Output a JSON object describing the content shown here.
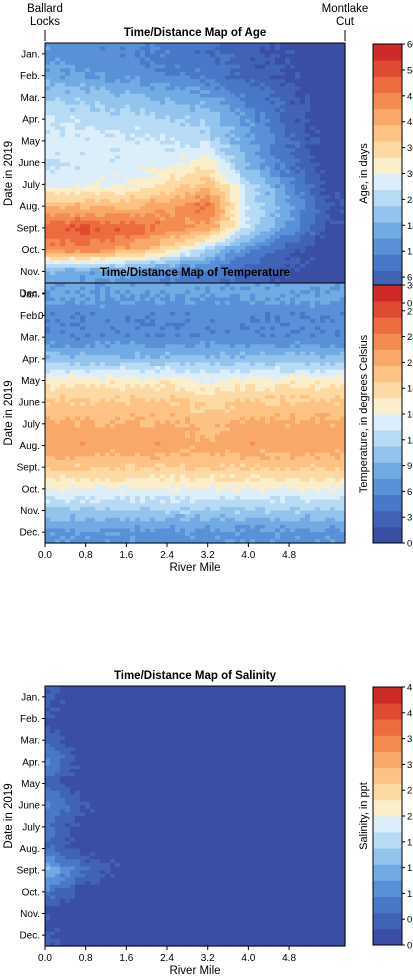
{
  "top_labels": {
    "left": [
      "Ballard",
      "Locks"
    ],
    "right": [
      "Montlake",
      "Cut"
    ]
  },
  "scale": {
    "colors": [
      "#3a4fa3",
      "#4063b6",
      "#4a78c8",
      "#5a90d8",
      "#72aae4",
      "#92c4ee",
      "#b7dbf5",
      "#dbeefa",
      "#fbeecb",
      "#fdd9a4",
      "#fcc384",
      "#f8a96a",
      "#f48c52",
      "#ec6c3f",
      "#df4b31",
      "#cf2a27"
    ]
  },
  "chart_data": [
    {
      "type": "heatmap",
      "title": "Time/Distance Map of Age",
      "xlabel": "River Mile",
      "ylabel": "Date in 2019",
      "colorbar_label": "Age, in days",
      "xlim": [
        0,
        5.9
      ],
      "xticks": [
        "0.0",
        "0.8",
        "1.6",
        "2.4",
        "3.2",
        "4.0",
        "4.8"
      ],
      "yticks": [
        "Jan.",
        "Feb.",
        "Mar.",
        "Apr.",
        "May",
        "June",
        "July",
        "Aug.",
        "Sept.",
        "Oct.",
        "Nov.",
        "Dec."
      ],
      "cticks": [
        "0.0",
        "6.0",
        "12.0",
        "18.0",
        "24.0",
        "30.0",
        "36.0",
        "42.0",
        "48.0",
        "54.0",
        "60.0"
      ],
      "vmax": 60,
      "months": [
        "Jan",
        "Feb",
        "Mar",
        "Apr",
        "May",
        "Jun",
        "Jul",
        "Aug",
        "Sep",
        "Oct",
        "Nov",
        "Dec"
      ],
      "river_mile": [
        0.0,
        0.8,
        1.6,
        2.4,
        3.2,
        4.0,
        4.8,
        5.6
      ],
      "values": [
        [
          14,
          13,
          12,
          10,
          8,
          5,
          3,
          1
        ],
        [
          16,
          15,
          14,
          12,
          10,
          6,
          3,
          1
        ],
        [
          22,
          21,
          20,
          18,
          16,
          10,
          5,
          1
        ],
        [
          26,
          25,
          24,
          23,
          21,
          14,
          6,
          1
        ],
        [
          28,
          28,
          27,
          26,
          25,
          16,
          8,
          1
        ],
        [
          26,
          27,
          28,
          29,
          32,
          18,
          8,
          1
        ],
        [
          28,
          29,
          30,
          34,
          40,
          24,
          12,
          2
        ],
        [
          40,
          41,
          40,
          44,
          50,
          26,
          16,
          4
        ],
        [
          52,
          53,
          52,
          48,
          44,
          26,
          14,
          3
        ],
        [
          46,
          48,
          44,
          36,
          24,
          12,
          5,
          1
        ],
        [
          18,
          17,
          15,
          12,
          10,
          6,
          3,
          1
        ],
        [
          14,
          13,
          12,
          10,
          8,
          5,
          3,
          1
        ]
      ]
    },
    {
      "type": "heatmap",
      "title": "Time/Distance Map of Temperature",
      "xlabel": "River Mile",
      "ylabel": "Date in 2019",
      "colorbar_label": "Temperature, in degrees Celsius",
      "xlim": [
        0,
        5.9
      ],
      "xticks": [
        "0.0",
        "0.8",
        "1.6",
        "2.4",
        "3.2",
        "4.0",
        "4.8"
      ],
      "yticks": [
        "Jan.",
        "Feb.",
        "Mar.",
        "Apr.",
        "May",
        "June",
        "July",
        "Aug.",
        "Sept.",
        "Oct.",
        "Nov.",
        "Dec."
      ],
      "cticks": [
        "0.0",
        "3.0",
        "6.0",
        "9.0",
        "12.0",
        "15.0",
        "18.0",
        "21.0",
        "24.0",
        "27.0",
        "30.0"
      ],
      "vmax": 30,
      "months": [
        "Jan",
        "Feb",
        "Mar",
        "Apr",
        "May",
        "Jun",
        "Jul",
        "Aug",
        "Sep",
        "Oct",
        "Nov",
        "Dec"
      ],
      "river_mile": [
        0.0,
        0.8,
        1.6,
        2.4,
        3.2,
        4.0,
        4.8,
        5.6
      ],
      "values": [
        [
          8,
          8,
          8,
          8,
          8,
          8,
          8,
          8
        ],
        [
          6,
          6,
          6,
          6,
          6,
          6,
          6,
          6
        ],
        [
          6,
          6,
          6,
          6,
          6,
          6,
          6,
          6
        ],
        [
          10,
          10,
          10,
          10,
          10,
          10,
          10,
          10
        ],
        [
          16,
          16,
          16,
          16,
          15,
          16,
          16,
          16
        ],
        [
          19,
          19,
          19,
          19,
          18,
          19,
          19,
          19
        ],
        [
          21,
          21,
          21,
          21,
          20,
          21,
          21,
          21
        ],
        [
          22,
          22,
          22,
          22,
          21,
          22,
          22,
          22
        ],
        [
          19,
          19,
          19,
          19,
          19,
          19,
          19,
          19
        ],
        [
          15,
          15,
          15,
          15,
          15,
          15,
          15,
          15
        ],
        [
          11,
          11,
          11,
          11,
          11,
          11,
          11,
          11
        ],
        [
          7,
          7,
          7,
          7,
          7,
          7,
          7,
          7
        ]
      ]
    },
    {
      "type": "heatmap",
      "title": "Time/Distance Map of Salinity",
      "xlabel": "River Mile",
      "ylabel": "Date in 2019",
      "colorbar_label": "Salinity, in ppt",
      "xlim": [
        0,
        5.9
      ],
      "xticks": [
        "0.0",
        "0.8",
        "1.6",
        "2.4",
        "3.2",
        "4.0",
        "4.8"
      ],
      "yticks": [
        "Jan.",
        "Feb.",
        "Mar.",
        "Apr.",
        "May",
        "June",
        "July",
        "Aug.",
        "Sept.",
        "Oct.",
        "Nov.",
        "Dec."
      ],
      "cticks": [
        "0.0",
        "0.5",
        "1.0",
        "1.4",
        "1.9",
        "2.4",
        "2.9",
        "3.4",
        "3.8",
        "4.3",
        "4.8"
      ],
      "vmax": 4.8,
      "months": [
        "Jan",
        "Feb",
        "Mar",
        "Apr",
        "May",
        "Jun",
        "Jul",
        "Aug",
        "Sep",
        "Oct",
        "Nov",
        "Dec"
      ],
      "river_mile": [
        0.0,
        0.8,
        1.6,
        2.4,
        3.2,
        4.0,
        4.8,
        5.6
      ],
      "values": [
        [
          0.4,
          0.0,
          0.0,
          0.0,
          0.0,
          0.0,
          0.0,
          0.0
        ],
        [
          0.3,
          0.0,
          0.0,
          0.0,
          0.0,
          0.0,
          0.0,
          0.0
        ],
        [
          0.6,
          0.0,
          0.0,
          0.0,
          0.0,
          0.0,
          0.0,
          0.0
        ],
        [
          1.0,
          0.1,
          0.0,
          0.0,
          0.0,
          0.0,
          0.0,
          0.0
        ],
        [
          0.5,
          0.0,
          0.0,
          0.0,
          0.0,
          0.0,
          0.0,
          0.0
        ],
        [
          1.0,
          0.3,
          0.0,
          0.0,
          0.0,
          0.0,
          0.0,
          0.0
        ],
        [
          0.7,
          0.1,
          0.0,
          0.0,
          0.0,
          0.0,
          0.0,
          0.0
        ],
        [
          0.6,
          0.1,
          0.0,
          0.0,
          0.0,
          0.0,
          0.0,
          0.0
        ],
        [
          1.6,
          0.6,
          0.2,
          0.0,
          0.0,
          0.0,
          0.0,
          0.0
        ],
        [
          0.8,
          0.1,
          0.0,
          0.0,
          0.0,
          0.0,
          0.0,
          0.0
        ],
        [
          0.2,
          0.0,
          0.0,
          0.0,
          0.0,
          0.0,
          0.0,
          0.0
        ],
        [
          0.4,
          0.0,
          0.0,
          0.0,
          0.0,
          0.0,
          0.0,
          0.0
        ]
      ]
    }
  ]
}
